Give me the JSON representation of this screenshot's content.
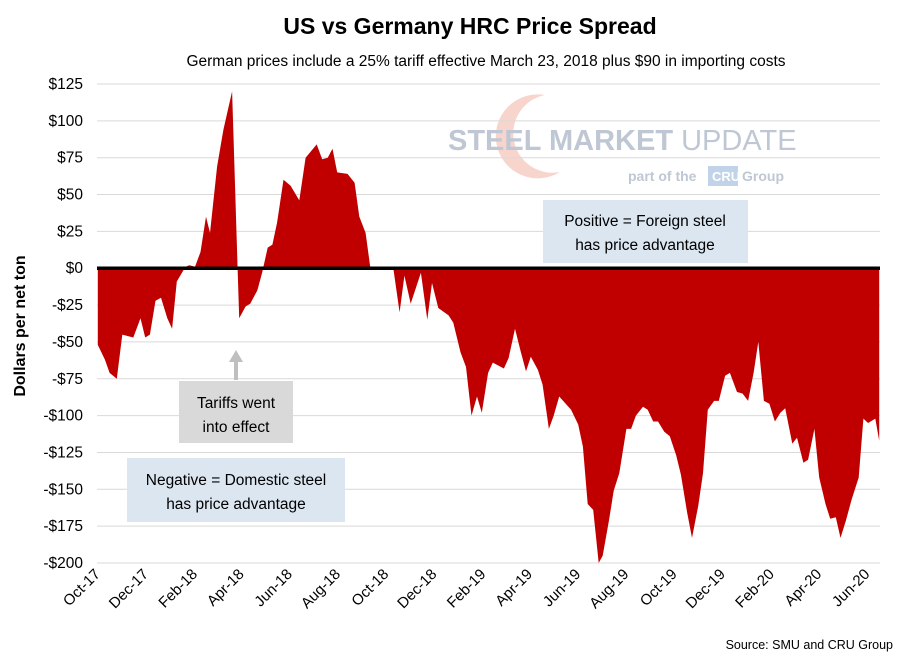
{
  "chart_data": {
    "type": "area",
    "title": "US vs Germany HRC Price Spread",
    "subtitle": "German prices include a 25% tariff effective March 23, 2018 plus $90 in importing costs",
    "ylabel": "Dollars per net ton",
    "xlabel": "",
    "ylim": [
      -200,
      125
    ],
    "xlim": [
      "2017-10-01",
      "2020-06-18"
    ],
    "y_ticks": [
      125,
      100,
      75,
      50,
      25,
      0,
      -25,
      -50,
      -75,
      -100,
      -125,
      -150,
      -175,
      -200
    ],
    "y_tick_labels": [
      "$125",
      "$100",
      "$75",
      "$50",
      "$25",
      "$0",
      "-$25",
      "-$50",
      "-$75",
      "-$100",
      "-$125",
      "-$150",
      "-$175",
      "-$200"
    ],
    "x_ticks": [
      "2017-10-01",
      "2017-12-01",
      "2018-02-01",
      "2018-04-01",
      "2018-06-01",
      "2018-08-01",
      "2018-10-01",
      "2018-12-01",
      "2019-02-01",
      "2019-04-01",
      "2019-06-01",
      "2019-08-01",
      "2019-10-01",
      "2019-12-01",
      "2020-02-01",
      "2020-04-01",
      "2020-06-01"
    ],
    "x_tick_labels": [
      "Oct-17",
      "Dec-17",
      "Feb-18",
      "Apr-18",
      "Jun-18",
      "Aug-18",
      "Oct-18",
      "Dec-18",
      "Feb-19",
      "Apr-19",
      "Jun-19",
      "Aug-19",
      "Oct-19",
      "Dec-19",
      "Feb-20",
      "Apr-20",
      "Jun-20"
    ],
    "grid": "horizontal",
    "color": "#c00000",
    "points": [
      [
        "2017-10-02",
        -52
      ],
      [
        "2017-10-11",
        -62
      ],
      [
        "2017-10-17",
        -71
      ],
      [
        "2017-10-26",
        -75
      ],
      [
        "2017-11-02",
        -45
      ],
      [
        "2017-11-16",
        -47
      ],
      [
        "2017-11-25",
        -34
      ],
      [
        "2017-12-01",
        -47
      ],
      [
        "2017-12-07",
        -45
      ],
      [
        "2017-12-14",
        -22
      ],
      [
        "2017-12-21",
        -20
      ],
      [
        "2017-12-29",
        -34
      ],
      [
        "2018-01-04",
        -41
      ],
      [
        "2018-01-10",
        -9
      ],
      [
        "2018-01-21",
        1
      ],
      [
        "2018-01-26",
        2
      ],
      [
        "2018-02-02",
        1
      ],
      [
        "2018-02-09",
        11
      ],
      [
        "2018-02-16",
        35
      ],
      [
        "2018-02-21",
        24
      ],
      [
        "2018-03-02",
        69
      ],
      [
        "2018-03-10",
        94
      ],
      [
        "2018-03-21",
        120
      ],
      [
        "2018-03-28",
        0
      ],
      [
        "2018-03-30",
        -34
      ],
      [
        "2018-04-07",
        -26
      ],
      [
        "2018-04-13",
        -24
      ],
      [
        "2018-04-22",
        -15
      ],
      [
        "2018-04-28",
        -3
      ],
      [
        "2018-05-05",
        14
      ],
      [
        "2018-05-11",
        16
      ],
      [
        "2018-05-17",
        31
      ],
      [
        "2018-05-25",
        60
      ],
      [
        "2018-06-03",
        56
      ],
      [
        "2018-06-14",
        46
      ],
      [
        "2018-06-22",
        75
      ],
      [
        "2018-07-06",
        84
      ],
      [
        "2018-07-13",
        74
      ],
      [
        "2018-07-20",
        75
      ],
      [
        "2018-07-26",
        81
      ],
      [
        "2018-08-01",
        65
      ],
      [
        "2018-08-14",
        64
      ],
      [
        "2018-08-23",
        58
      ],
      [
        "2018-08-29",
        35
      ],
      [
        "2018-09-06",
        24
      ],
      [
        "2018-09-12",
        0
      ],
      [
        "2018-10-11",
        0
      ],
      [
        "2018-10-19",
        -30
      ],
      [
        "2018-10-25",
        -5
      ],
      [
        "2018-11-02",
        -24
      ],
      [
        "2018-11-15",
        -3
      ],
      [
        "2018-11-23",
        -35
      ],
      [
        "2018-11-29",
        -10
      ],
      [
        "2018-12-07",
        -27
      ],
      [
        "2018-12-20",
        -32
      ],
      [
        "2018-12-26",
        -37
      ],
      [
        "2019-01-04",
        -57
      ],
      [
        "2019-01-11",
        -67
      ],
      [
        "2019-01-18",
        -100
      ],
      [
        "2019-01-25",
        -87
      ],
      [
        "2019-01-31",
        -98
      ],
      [
        "2019-02-08",
        -71
      ],
      [
        "2019-02-14",
        -64
      ],
      [
        "2019-02-28",
        -68
      ],
      [
        "2019-03-06",
        -61
      ],
      [
        "2019-03-14",
        -41
      ],
      [
        "2019-03-21",
        -56
      ],
      [
        "2019-03-28",
        -70
      ],
      [
        "2019-04-03",
        -60
      ],
      [
        "2019-04-12",
        -69
      ],
      [
        "2019-04-18",
        -79
      ],
      [
        "2019-04-26",
        -109
      ],
      [
        "2019-05-02",
        -100
      ],
      [
        "2019-05-09",
        -87
      ],
      [
        "2019-05-24",
        -96
      ],
      [
        "2019-06-02",
        -106
      ],
      [
        "2019-06-08",
        -121
      ],
      [
        "2019-06-14",
        -160
      ],
      [
        "2019-06-21",
        -164
      ],
      [
        "2019-06-28",
        -200
      ],
      [
        "2019-07-03",
        -195
      ],
      [
        "2019-07-11",
        -171
      ],
      [
        "2019-07-17",
        -151
      ],
      [
        "2019-07-24",
        -139
      ],
      [
        "2019-08-02",
        -109
      ],
      [
        "2019-08-08",
        -109
      ],
      [
        "2019-08-14",
        -100
      ],
      [
        "2019-08-23",
        -94
      ],
      [
        "2019-08-29",
        -96
      ],
      [
        "2019-09-05",
        -104
      ],
      [
        "2019-09-11",
        -104
      ],
      [
        "2019-09-19",
        -111
      ],
      [
        "2019-09-26",
        -114
      ],
      [
        "2019-10-04",
        -127
      ],
      [
        "2019-10-10",
        -140
      ],
      [
        "2019-10-18",
        -166
      ],
      [
        "2019-10-24",
        -183
      ],
      [
        "2019-11-01",
        -161
      ],
      [
        "2019-11-07",
        -139
      ],
      [
        "2019-11-13",
        -96
      ],
      [
        "2019-11-21",
        -90
      ],
      [
        "2019-11-27",
        -90
      ],
      [
        "2019-12-05",
        -73
      ],
      [
        "2019-12-11",
        -71
      ],
      [
        "2019-12-20",
        -84
      ],
      [
        "2019-12-27",
        -85
      ],
      [
        "2020-01-03",
        -90
      ],
      [
        "2020-01-10",
        -71
      ],
      [
        "2020-01-16",
        -50
      ],
      [
        "2020-01-23",
        -90
      ],
      [
        "2020-01-30",
        -92
      ],
      [
        "2020-02-06",
        -104
      ],
      [
        "2020-02-13",
        -98
      ],
      [
        "2020-02-19",
        -95
      ],
      [
        "2020-02-28",
        -119
      ],
      [
        "2020-03-05",
        -115
      ],
      [
        "2020-03-13",
        -132
      ],
      [
        "2020-03-19",
        -130
      ],
      [
        "2020-03-27",
        -109
      ],
      [
        "2020-04-02",
        -142
      ],
      [
        "2020-04-10",
        -160
      ],
      [
        "2020-04-16",
        -170
      ],
      [
        "2020-04-23",
        -169
      ],
      [
        "2020-04-29",
        -183
      ],
      [
        "2020-05-06",
        -171
      ],
      [
        "2020-05-13",
        -157
      ],
      [
        "2020-05-22",
        -142
      ],
      [
        "2020-05-28",
        -102
      ],
      [
        "2020-06-03",
        -105
      ],
      [
        "2020-06-12",
        -102
      ],
      [
        "2020-06-17",
        -117
      ]
    ],
    "annotations": {
      "positive": [
        "Positive = Foreign steel",
        "has price advantage"
      ],
      "negative": [
        "Negative = Domestic steel",
        "has price advantage"
      ],
      "tariffs": [
        "Tariffs went",
        "into effect"
      ],
      "tariff_date": "2018-03-23"
    },
    "source": "Source: SMU and CRU Group"
  },
  "logo": {
    "name": "STEEL MARKET UPDATE",
    "tagline_prefix": "part of the",
    "tagline_brand": "CRU",
    "tagline_suffix": "Group"
  }
}
